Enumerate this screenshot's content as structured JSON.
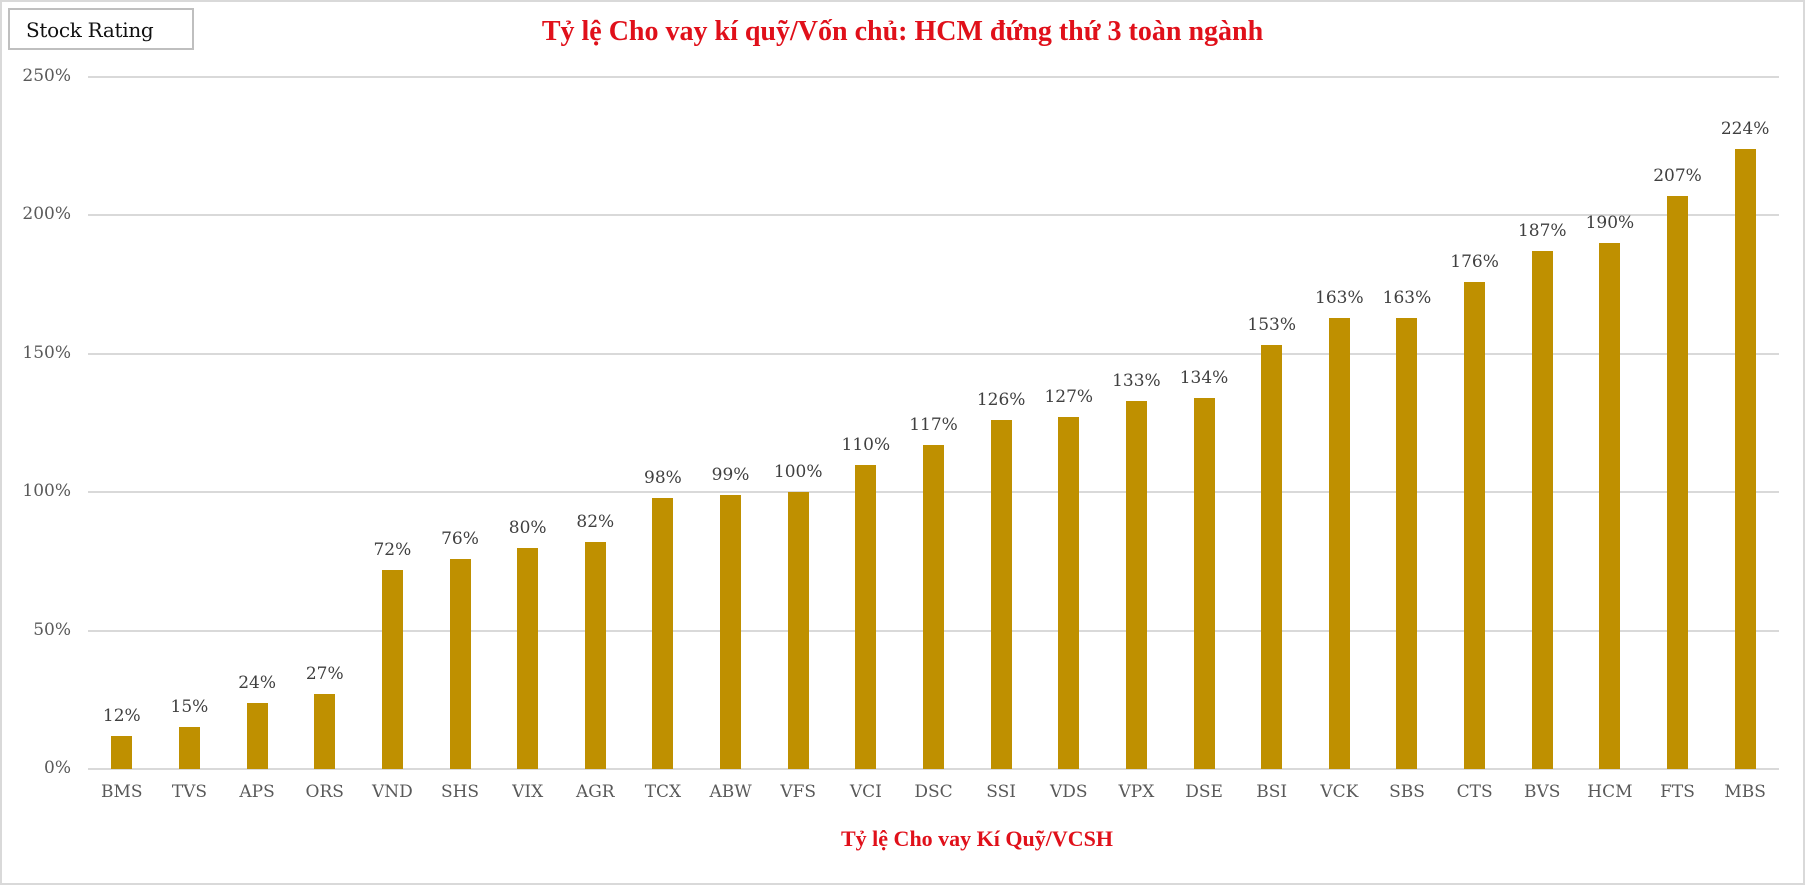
{
  "badge": {
    "label": "Stock Rating"
  },
  "title": "Tỷ lệ Cho vay kí quỹ/Vốn chủ: HCM đứng thứ 3 toàn ngành",
  "axis_title": "Tỷ lệ Cho vay Kí Quỹ/VCSH",
  "colors": {
    "bar": "#BF9000",
    "title": "#E0101A",
    "grid": "#D9D9D9",
    "tick_text": "#595959"
  },
  "y_ticks": [
    "0%",
    "50%",
    "100%",
    "150%",
    "200%",
    "250%"
  ],
  "chart_data": {
    "type": "bar",
    "title": "Tỷ lệ Cho vay kí quỹ/Vốn chủ: HCM đứng thứ 3 toàn ngành",
    "xlabel": "Tỷ lệ Cho vay Kí Quỹ/VCSH",
    "ylabel": "",
    "ylim": [
      0,
      250
    ],
    "y_unit": "%",
    "y_ticks": [
      0,
      50,
      100,
      150,
      200,
      250
    ],
    "grid": true,
    "legend": null,
    "categories": [
      "BMS",
      "TVS",
      "APS",
      "ORS",
      "VND",
      "SHS",
      "VIX",
      "AGR",
      "TCX",
      "ABW",
      "VFS",
      "VCI",
      "DSC",
      "SSI",
      "VDS",
      "VPX",
      "DSE",
      "BSI",
      "VCK",
      "SBS",
      "CTS",
      "BVS",
      "HCM",
      "FTS",
      "MBS"
    ],
    "values": [
      12,
      15,
      24,
      27,
      72,
      76,
      80,
      82,
      98,
      99,
      100,
      110,
      117,
      126,
      127,
      133,
      134,
      153,
      163,
      163,
      176,
      187,
      190,
      207,
      224
    ],
    "data_labels": [
      "12%",
      "15%",
      "24%",
      "27%",
      "72%",
      "76%",
      "80%",
      "82%",
      "98%",
      "99%",
      "100%",
      "110%",
      "117%",
      "126%",
      "127%",
      "133%",
      "134%",
      "153%",
      "163%",
      "163%",
      "176%",
      "187%",
      "190%",
      "207%",
      "224%"
    ]
  }
}
